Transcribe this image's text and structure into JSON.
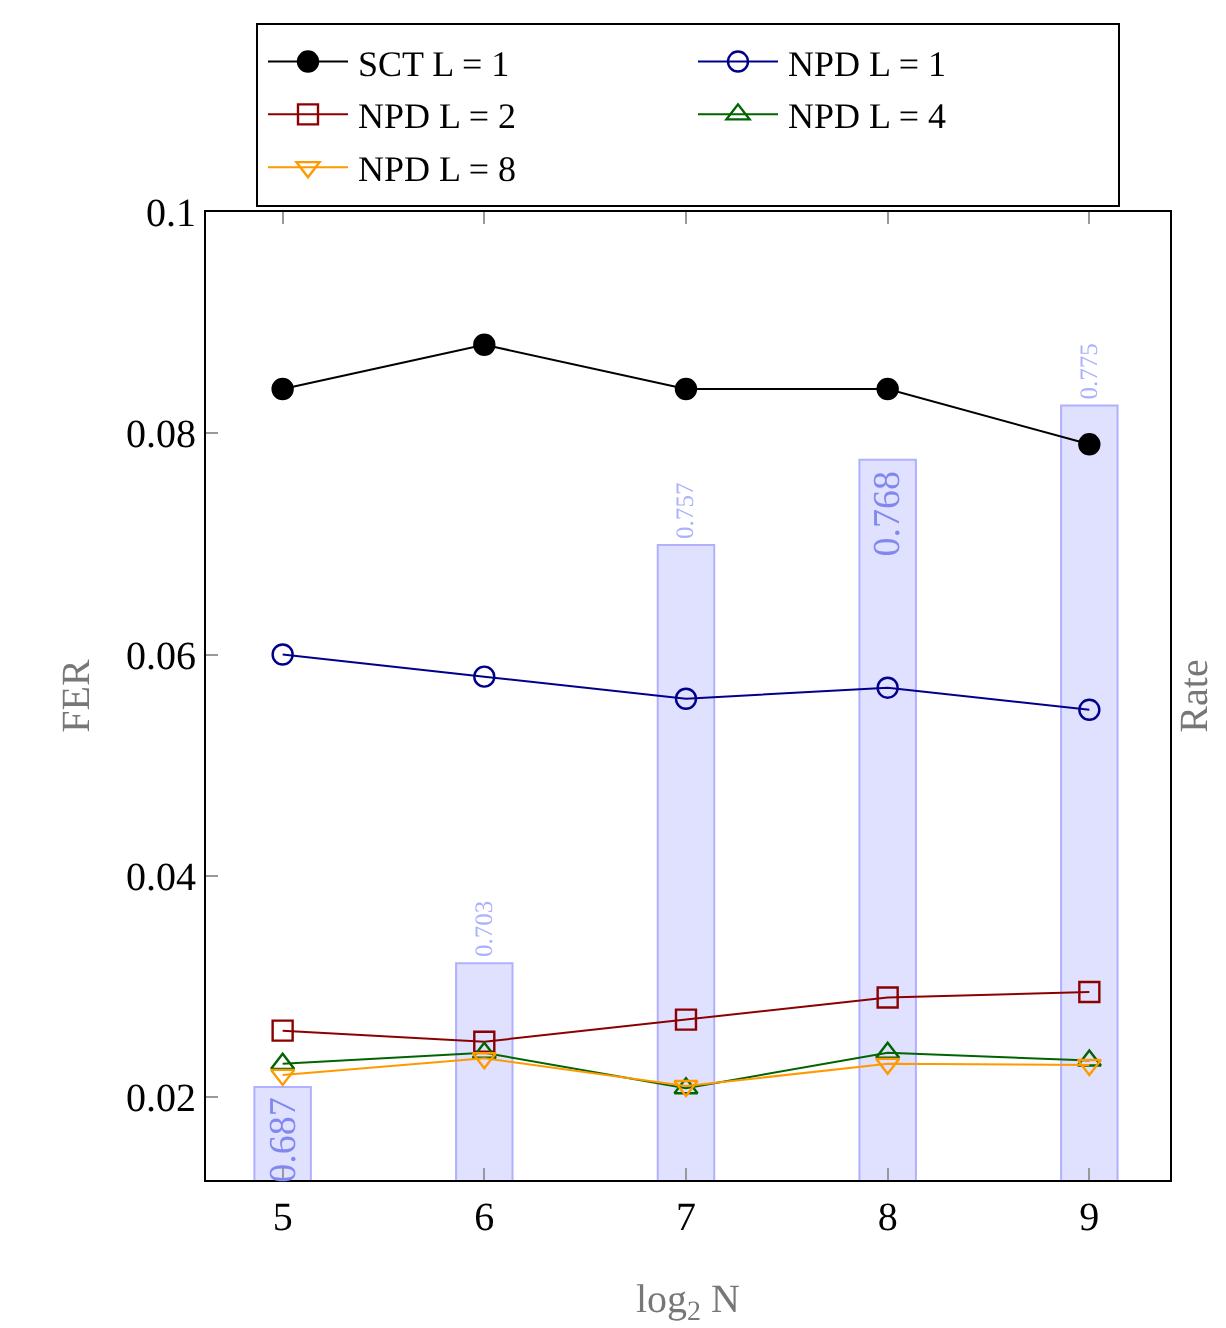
{
  "chart_data": {
    "type": "line",
    "xlabel": "log$_{2}$ N",
    "ylabel": "FER",
    "y2label": "Rate",
    "x": [
      5,
      6,
      7,
      8,
      9
    ],
    "xlim": [
      4.62,
      9.4
    ],
    "xticks": [
      5,
      6,
      7,
      8,
      9
    ],
    "ylim": [
      0.0125,
      0.1
    ],
    "yticks": [
      0.02,
      0.04,
      0.06,
      0.08,
      {
        "value": 0.1,
        "label": "0.1"
      }
    ],
    "y2lim": [
      0.675,
      0.8
    ],
    "tick_labels": "xy",
    "grid": false,
    "legend": "top",
    "series": [
      {
        "type": "bar",
        "axis": "y2",
        "color": "#e0e0ff",
        "values": [
          0.687,
          0.703,
          0.757,
          0.768,
          0.775
        ],
        "data_labels": true
      },
      {
        "name": "SCT L = 1",
        "color": "#000000",
        "marker": "circle",
        "values": [
          0.084,
          0.088,
          0.084,
          0.084,
          0.079
        ]
      },
      {
        "name": "NPD L = 1",
        "color": "#00008b",
        "marker": "circle-open",
        "values": [
          0.06,
          0.058,
          0.056,
          0.057,
          0.055
        ]
      },
      {
        "name": "NPD L = 2",
        "color": "#8b0000",
        "marker": "square-open",
        "values": [
          0.026,
          0.025,
          0.027,
          0.029,
          0.0295
        ]
      },
      {
        "name": "NPD L = 4",
        "color": "#006400",
        "marker": "triangle-open",
        "values": [
          0.023,
          0.024,
          0.0208,
          0.024,
          0.0233
        ]
      },
      {
        "name": "NPD L = 8",
        "color": "#ff9900",
        "marker": "triangle-down-open",
        "values": [
          0.022,
          0.0235,
          0.021,
          0.023,
          0.0229
        ]
      }
    ]
  }
}
